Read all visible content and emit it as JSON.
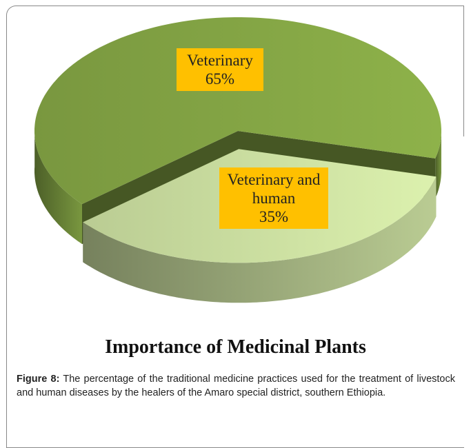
{
  "chart_data": {
    "type": "pie3d",
    "title": "Importance of Medicinal Plants",
    "categories": [
      "Veterinary",
      "Veterinary and human"
    ],
    "values": [
      65,
      35
    ],
    "value_labels": [
      "65%",
      "35%"
    ],
    "colors": [
      "#7f9f42",
      "#c4d79b"
    ],
    "label_box_color": "#ffc000"
  },
  "caption": {
    "label": "Figure 8:",
    "text": "The percentage of the traditional medicine practices used for the treatment of livestock and human diseases by the healers of the Amaro special district, southern Ethiopia."
  }
}
